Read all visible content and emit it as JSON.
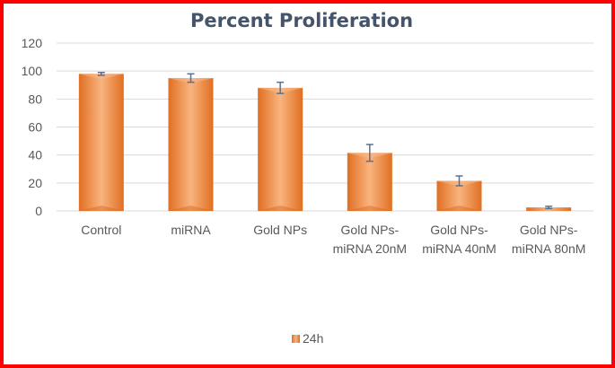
{
  "chart_data": {
    "type": "bar",
    "title": "Percent Proliferation",
    "xlabel": "",
    "ylabel": "",
    "categories": [
      [
        "Control"
      ],
      [
        "miRNA"
      ],
      [
        "Gold NPs"
      ],
      [
        "Gold NPs-",
        "miRNA 20nM"
      ],
      [
        "Gold NPs-",
        "miRNA 40nM"
      ],
      [
        "Gold NPs-",
        "miRNA 80nM"
      ]
    ],
    "series": [
      {
        "name": "24h",
        "values": [
          98,
          95,
          88,
          41.5,
          21.5,
          2.5
        ],
        "errors": [
          1,
          3,
          4,
          6,
          3.5,
          0.8
        ],
        "color": "#ed7d31"
      }
    ],
    "ylim": [
      0,
      120
    ],
    "yticks": [
      "0",
      "20",
      "40",
      "60",
      "80",
      "100",
      "120"
    ],
    "grid": true,
    "legend": "bottom"
  },
  "colors": {
    "frame": "#ff0000",
    "bar": "#ed7d31",
    "bar_light": "#f7b98a",
    "bar_dark": "#d4661c",
    "gridline": "#d9d9d9",
    "error_bar": "#5b6f8f"
  }
}
